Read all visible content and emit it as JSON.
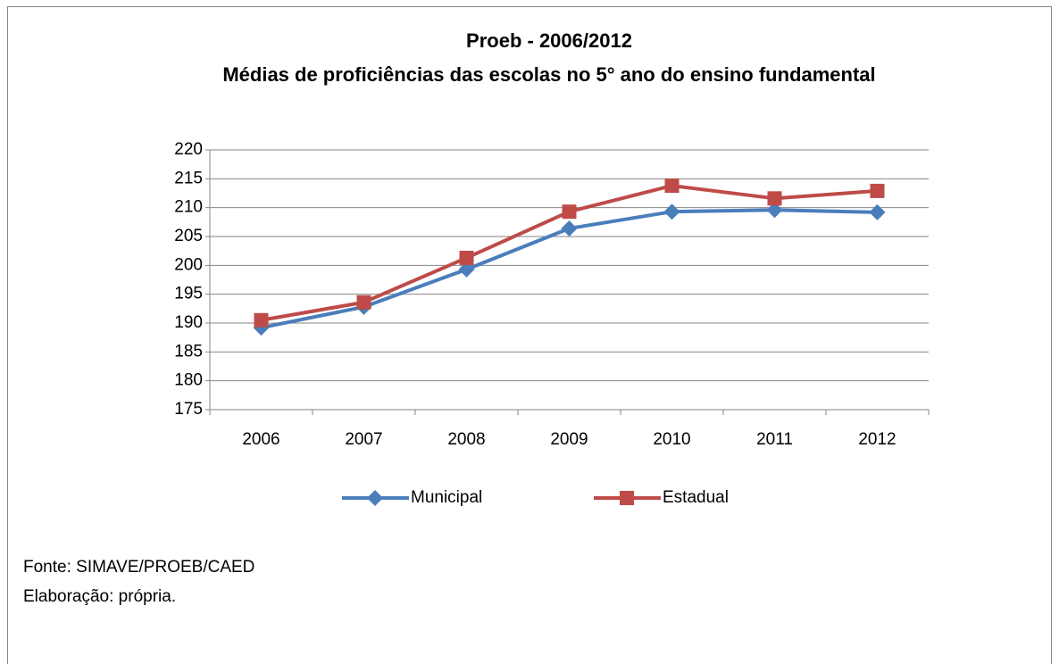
{
  "chart_data": {
    "type": "line",
    "title": "Proeb  - 2006/2012",
    "subtitle": "Médias de proficiências das escolas no 5° ano do ensino fundamental",
    "categories": [
      "2006",
      "2007",
      "2008",
      "2009",
      "2010",
      "2011",
      "2012"
    ],
    "series": [
      {
        "name": "Municipal",
        "color": "#4a7ebb",
        "marker": "diamond",
        "values": [
          189.2,
          192.8,
          199.3,
          206.4,
          209.3,
          209.6,
          209.2
        ]
      },
      {
        "name": "Estadual",
        "color": "#be4b48",
        "marker": "square",
        "values": [
          190.5,
          193.6,
          201.3,
          209.3,
          213.8,
          211.6,
          212.9
        ]
      }
    ],
    "ylim": [
      175,
      220
    ],
    "yticks": [
      175,
      180,
      185,
      190,
      195,
      200,
      205,
      210,
      215,
      220
    ],
    "grid": true,
    "legend": "bottom"
  },
  "footer": [
    "Fonte: SIMAVE/PROEB/CAED",
    "Elaboração: própria."
  ]
}
